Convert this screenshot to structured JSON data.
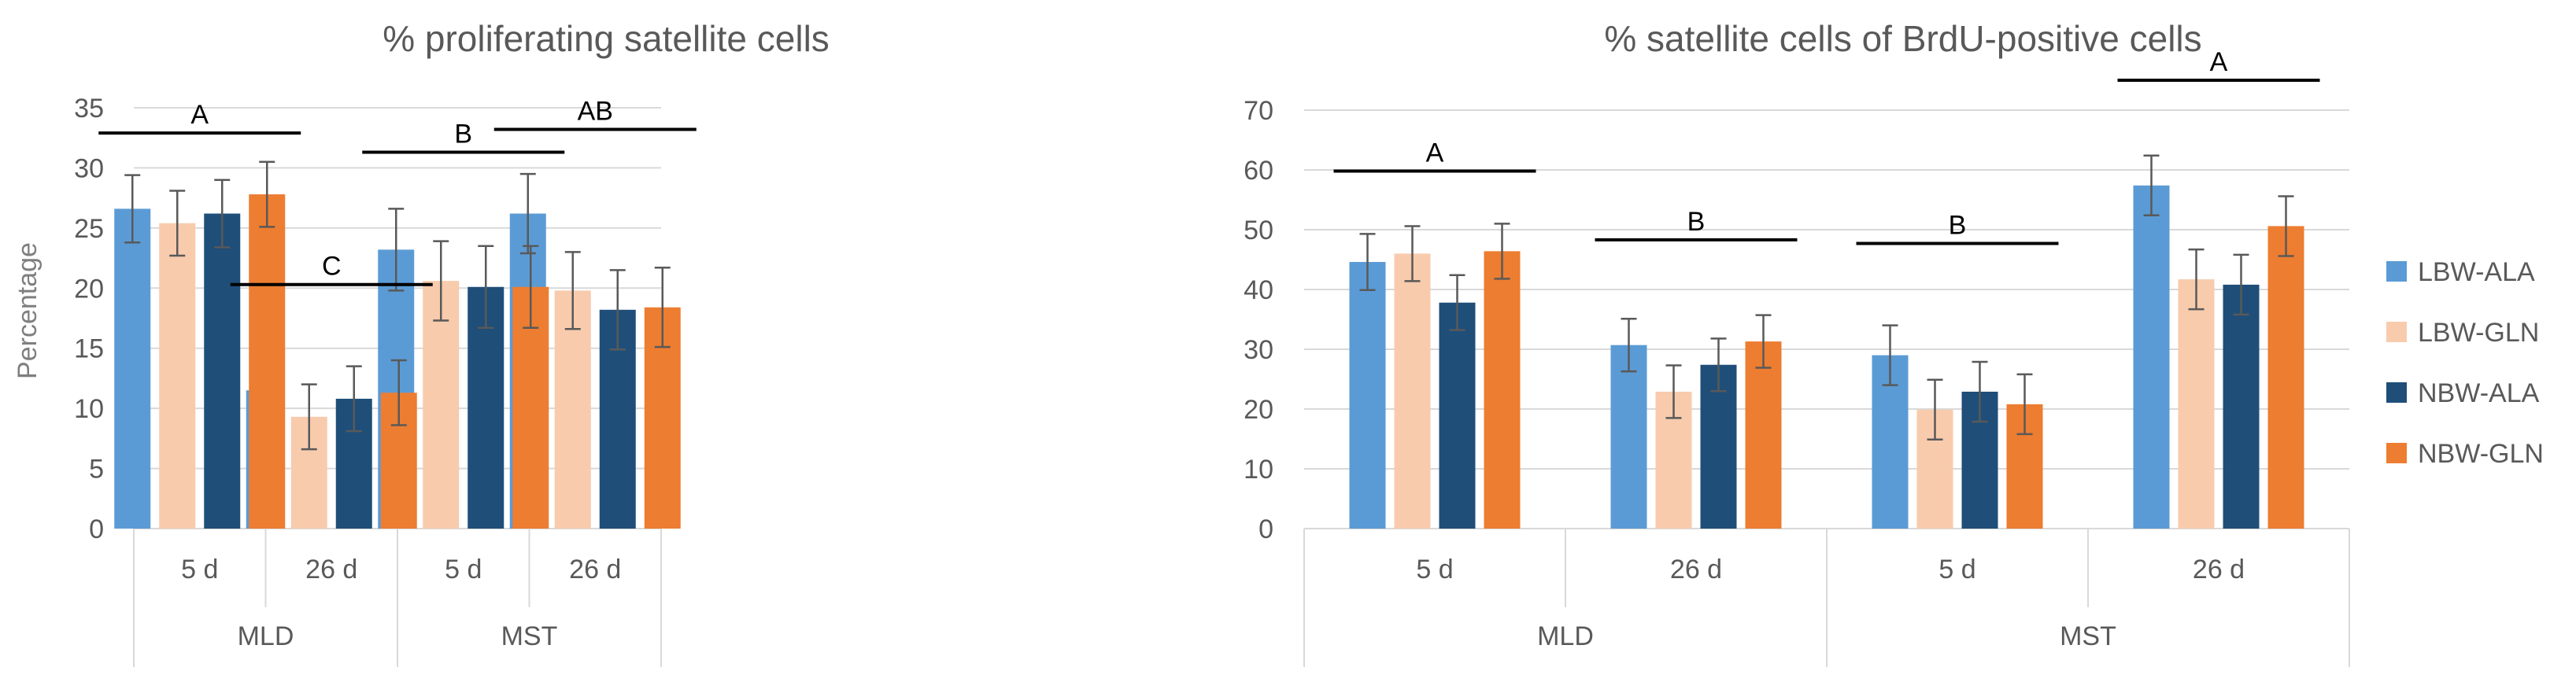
{
  "legend": [
    {
      "name": "LBW-ALA",
      "color": "#5b9bd5"
    },
    {
      "name": "LBW-GLN",
      "color": "#f8cbad"
    },
    {
      "name": "NBW-ALA",
      "color": "#1f4e79"
    },
    {
      "name": "NBW-GLN",
      "color": "#ed7d31"
    }
  ],
  "chart_data": [
    {
      "type": "bar",
      "title": "% proliferating satellite cells",
      "ylabel": "Percentage",
      "ylim": [
        0,
        35
      ],
      "yticks": [
        0,
        5,
        10,
        15,
        20,
        25,
        30,
        35
      ],
      "groups": [
        "MLD",
        "MST"
      ],
      "categories": [
        "5 d",
        "26 d",
        "5 d",
        "26 d"
      ],
      "series": [
        {
          "name": "LBW-ALA",
          "values": [
            26.6,
            11.5,
            23.2,
            26.2
          ],
          "errors": [
            2.8,
            2.7,
            3.4,
            3.3
          ]
        },
        {
          "name": "LBW-GLN",
          "values": [
            25.4,
            9.3,
            20.6,
            19.8
          ],
          "errors": [
            2.7,
            2.7,
            3.3,
            3.2
          ]
        },
        {
          "name": "NBW-ALA",
          "values": [
            26.2,
            10.8,
            20.1,
            18.2
          ],
          "errors": [
            2.8,
            2.7,
            3.4,
            3.3
          ]
        },
        {
          "name": "NBW-GLN",
          "values": [
            27.8,
            11.3,
            20.1,
            18.4
          ],
          "errors": [
            2.7,
            2.7,
            3.4,
            3.3
          ]
        }
      ],
      "significance": [
        "A",
        "C",
        "B",
        "AB"
      ],
      "significance_y": [
        32.9,
        20.3,
        31.3,
        33.2
      ]
    },
    {
      "type": "bar",
      "title": "% satellite cells of BrdU-positive cells",
      "ylabel": "",
      "ylim": [
        0,
        70
      ],
      "yticks": [
        0,
        10,
        20,
        30,
        40,
        50,
        60,
        70
      ],
      "groups": [
        "MLD",
        "MST"
      ],
      "categories": [
        "5 d",
        "26 d",
        "5 d",
        "26 d"
      ],
      "series": [
        {
          "name": "LBW-ALA",
          "values": [
            44.6,
            30.7,
            29.0,
            57.4
          ],
          "errors": [
            4.7,
            4.4,
            5.0,
            5.0
          ]
        },
        {
          "name": "LBW-GLN",
          "values": [
            46.0,
            22.9,
            19.9,
            41.7
          ],
          "errors": [
            4.6,
            4.4,
            5.0,
            5.0
          ]
        },
        {
          "name": "NBW-ALA",
          "values": [
            37.8,
            27.4,
            22.9,
            40.8
          ],
          "errors": [
            4.6,
            4.4,
            5.0,
            5.0
          ]
        },
        {
          "name": "NBW-GLN",
          "values": [
            46.4,
            31.3,
            20.8,
            50.6
          ],
          "errors": [
            4.6,
            4.4,
            5.0,
            5.0
          ]
        }
      ],
      "significance": [
        "A",
        "B",
        "B",
        "A"
      ],
      "significance_y": [
        59.8,
        48.3,
        47.7,
        75.0
      ]
    }
  ]
}
